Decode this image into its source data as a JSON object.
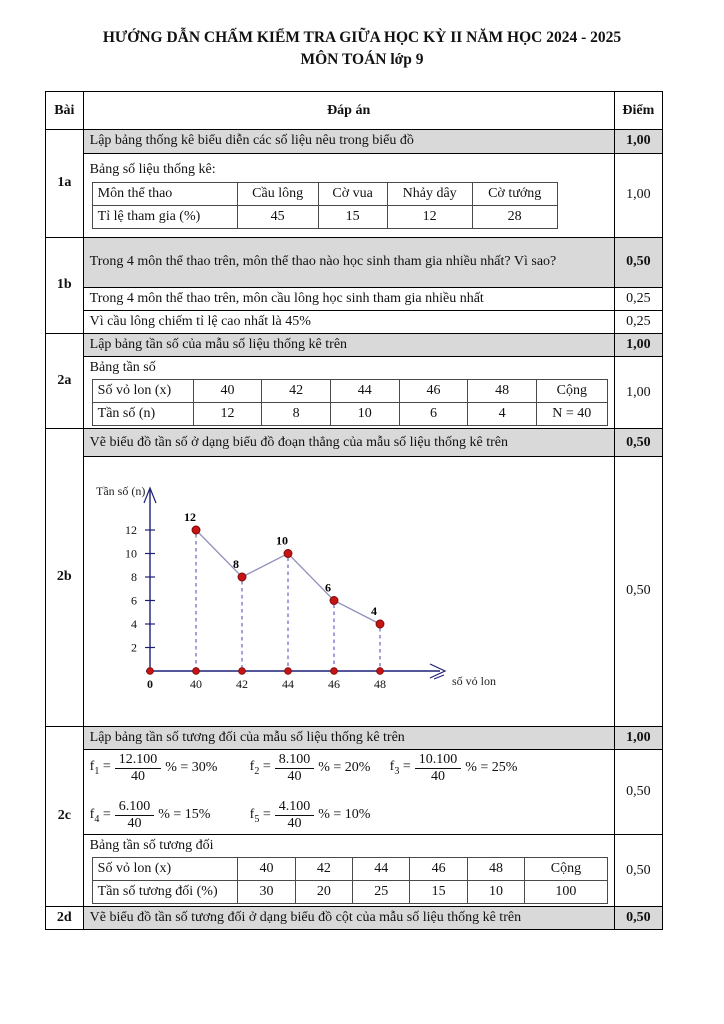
{
  "title": {
    "line1": "HƯỚNG DẪN CHẤM KIỂM TRA GIỮA HỌC KỲ II NĂM HỌC 2024 - 2025",
    "line2": "MÔN TOÁN lớp 9"
  },
  "table": {
    "headers": {
      "bai": "Bài",
      "dapan": "Đáp án",
      "diem": "Điểm"
    }
  },
  "sections": {
    "s1a": {
      "label": "1a",
      "q": "Lập bảng thống kê biểu diễn các số liệu nêu trong biểu đồ",
      "q_score": "1,00",
      "caption": "Bảng số liệu thống kê:",
      "table": {
        "rows": [
          [
            "Môn thể thao",
            "Cầu lông",
            "Cờ vua",
            "Nhảy dây",
            "Cờ tướng"
          ],
          [
            "Tỉ lệ tham gia (%)",
            "45",
            "15",
            "12",
            "28"
          ]
        ]
      },
      "score": "1,00"
    },
    "s1b": {
      "label": "1b",
      "q": "Trong 4 môn thể thao trên, môn thể thao nào học sinh tham gia nhiều nhất? Vì sao?",
      "q_score": "0,50",
      "a1": "Trong 4 môn thể thao trên, môn cầu lông học sinh tham gia nhiều nhất",
      "a1_score": "0,25",
      "a2": "Vì cầu lông chiếm tỉ lệ cao nhất là 45%",
      "a2_score": "0,25"
    },
    "s2a": {
      "label": "2a",
      "q": "Lập bảng tần số của mẫu số liệu thống kê trên",
      "q_score": "1,00",
      "caption": "Bảng tần số",
      "table": {
        "rows": [
          [
            "Số vỏ lon (x)",
            "40",
            "42",
            "44",
            "46",
            "48",
            "Cộng"
          ],
          [
            "Tần số (n)",
            "12",
            "8",
            "10",
            "6",
            "4",
            "N = 40"
          ]
        ]
      },
      "score": "1,00"
    },
    "s2b": {
      "label": "2b",
      "q": "Vẽ biểu đồ tần số ở dạng biểu đồ đoạn thẳng của mẫu số liệu thống kê trên",
      "q_score": "0,50",
      "score": "0,50"
    },
    "s2c": {
      "label": "2c",
      "q": "Lập bảng tần số tương đối của mẫu số liệu thống kê trên",
      "q_score": "1,00",
      "formulas": [
        {
          "name": "f",
          "sub": "1",
          "num": "12.100",
          "den": "40",
          "tail": "% = 30%"
        },
        {
          "name": "f",
          "sub": "2",
          "num": "8.100",
          "den": "40",
          "tail": "% = 20%"
        },
        {
          "name": "f",
          "sub": "3",
          "num": "10.100",
          "den": "40",
          "tail": "% = 25%"
        },
        {
          "name": "f",
          "sub": "4",
          "num": "6.100",
          "den": "40",
          "tail": "% = 15%"
        },
        {
          "name": "f",
          "sub": "5",
          "num": "4.100",
          "den": "40",
          "tail": "% = 10%"
        }
      ],
      "formulas_score": "0,50",
      "caption": "Bảng tần số tương đối",
      "table": {
        "rows": [
          [
            "Số vỏ lon (x)",
            "40",
            "42",
            "44",
            "46",
            "48",
            "Cộng"
          ],
          [
            "Tần số tương đối (%)",
            "30",
            "20",
            "25",
            "15",
            "10",
            "100"
          ]
        ]
      },
      "table_score": "0,50"
    },
    "s2d": {
      "label": "2d",
      "q": "Vẽ biểu đồ tần số tương đối ở dạng biểu đồ cột của mẫu số liệu thống kê trên",
      "q_score": "0,50"
    }
  },
  "chart_data": {
    "type": "line",
    "x": [
      40,
      42,
      44,
      46,
      48
    ],
    "values": [
      12,
      8,
      10,
      6,
      4
    ],
    "xlabel": "số vỏ lon",
    "ylabel": "Tần số (n)",
    "yticks": [
      2,
      4,
      6,
      8,
      10,
      12
    ],
    "origin": "0",
    "ylim": [
      0,
      14
    ],
    "grid": false,
    "colors": {
      "axis": "#1f1f78",
      "dash": "#4646b4",
      "line": "#9090bd",
      "point": "#c51414",
      "point_edge": "#7c0606"
    }
  }
}
